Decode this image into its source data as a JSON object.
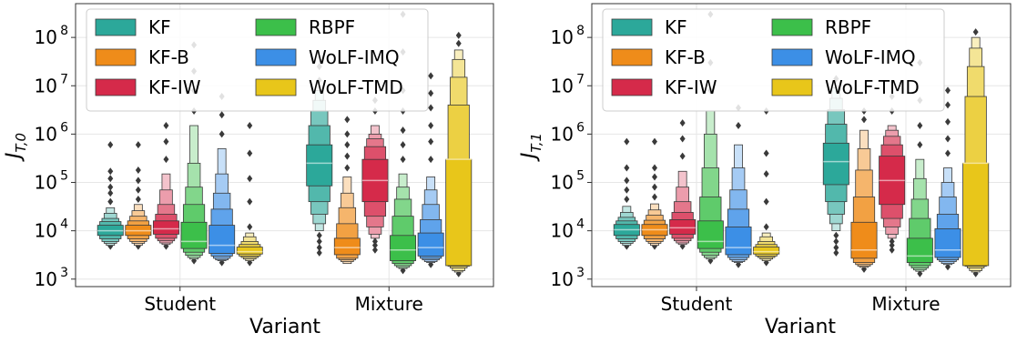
{
  "chart_data": [
    {
      "type": "boxen",
      "panel": "left",
      "xlabel": "Variant",
      "ylabel": "J_{T,0}",
      "ylabel_main": "J",
      "ylabel_sub": "T,0",
      "yscale": "log",
      "ylim": [
        700,
        500000000
      ],
      "grid": true,
      "legend": "top-left",
      "categories": [
        "Student",
        "Mixture"
      ],
      "yticks": [
        {
          "value": 1000,
          "base": "10",
          "exp": "3"
        },
        {
          "value": 10000,
          "base": "10",
          "exp": "4"
        },
        {
          "value": 100000,
          "base": "10",
          "exp": "5"
        },
        {
          "value": 1000000,
          "base": "10",
          "exp": "6"
        },
        {
          "value": 10000000,
          "base": "10",
          "exp": "7"
        },
        {
          "value": 100000000,
          "base": "10",
          "exp": "8"
        }
      ],
      "series": [
        {
          "name": "KF",
          "color": "#2ca89a",
          "values": [
            {
              "median": 10000,
              "levels": [
                [
                  8000,
                  13000
                ],
                [
                  6800,
                  15500
                ],
                [
                  6000,
                  18000
                ],
                [
                  5500,
                  23000
                ],
                [
                  5000,
                  30000
                ]
              ],
              "outliers": [
                4800,
                40000,
                60000,
                80000,
                120000,
                170000,
                600000
              ]
            },
            {
              "median": 250000,
              "levels": [
                [
                  85000,
                  600000
                ],
                [
                  40000,
                  1500000
                ],
                [
                  22000,
                  3000000
                ],
                [
                  14000,
                  5000000
                ],
                [
                  10000,
                  8000000
                ]
              ],
              "outliers": [
                3500,
                4500,
                6000,
                8000,
                13000000,
                25000000
              ]
            }
          ]
        },
        {
          "name": "KF-B",
          "color": "#ef8c1a",
          "values": [
            {
              "median": 10000,
              "levels": [
                [
                  8000,
                  13000
                ],
                [
                  6800,
                  16000
                ],
                [
                  6000,
                  20000
                ],
                [
                  5500,
                  26000
                ],
                [
                  5000,
                  35000
                ]
              ],
              "outliers": [
                4800,
                45000,
                70000,
                110000,
                180000,
                600000
              ]
            },
            {
              "median": 4500,
              "levels": [
                [
                  3200,
                  7000
                ],
                [
                  2700,
                  14000
                ],
                [
                  2500,
                  30000
                ],
                [
                  2300,
                  60000
                ],
                [
                  2100,
                  130000
                ]
              ],
              "outliers": [
                200000,
                350000,
                600000,
                1000000,
                2000000
              ]
            }
          ]
        },
        {
          "name": "KF-IW",
          "color": "#d52a4a",
          "values": [
            {
              "median": 11000,
              "levels": [
                [
                  8500,
                  16000
                ],
                [
                  7000,
                  22000
                ],
                [
                  6200,
                  35000
                ],
                [
                  5600,
                  70000
                ],
                [
                  5200,
                  150000
                ]
              ],
              "outliers": [
                4800,
                300000,
                700000,
                1500000
              ]
            },
            {
              "median": 110000,
              "levels": [
                [
                  40000,
                  300000
                ],
                [
                  20000,
                  550000
                ],
                [
                  12000,
                  800000
                ],
                [
                  8500,
                  1000000
                ],
                [
                  7000,
                  1500000
                ]
              ],
              "outliers": [
                4000,
                5000,
                6000,
                7500,
                3000000,
                5000000
              ]
            }
          ]
        },
        {
          "name": "RBPF",
          "color": "#3cbf4a",
          "values": [
            {
              "median": 6000,
              "levels": [
                [
                  4300,
                  15000
                ],
                [
                  3600,
                  35000
                ],
                [
                  3100,
                  80000
                ],
                [
                  2800,
                  250000
                ],
                [
                  2600,
                  1500000
                ]
              ],
              "outliers": [
                2400,
                3000000,
                8000000,
                20000000,
                70000000
              ]
            },
            {
              "median": 4000,
              "levels": [
                [
                  2400,
                  8000
                ],
                [
                  2100,
                  20000
                ],
                [
                  1900,
                  45000
                ],
                [
                  1750,
                  80000
                ],
                [
                  1650,
                  150000
                ]
              ],
              "outliers": [
                1500,
                300000,
                600000,
                1200000,
                3000000,
                8000000,
                50000000,
                300000000
              ]
            }
          ]
        },
        {
          "name": "WoLF-IMQ",
          "color": "#3c8fe6",
          "values": [
            {
              "median": 5000,
              "levels": [
                [
                  3400,
                  13000
                ],
                [
                  3000,
                  28000
                ],
                [
                  2700,
                  60000
                ],
                [
                  2500,
                  150000
                ],
                [
                  2400,
                  500000
                ]
              ],
              "outliers": [
                2200,
                1000000,
                2500000,
                6000000
              ]
            },
            {
              "median": 4500,
              "levels": [
                [
                  3000,
                  9000
                ],
                [
                  2700,
                  17000
                ],
                [
                  2500,
                  35000
                ],
                [
                  2300,
                  70000
                ],
                [
                  2200,
                  130000
                ]
              ],
              "outliers": [
                2000,
                300000,
                700000,
                1500000,
                3500000,
                7000000,
                16000000
              ]
            }
          ]
        },
        {
          "name": "WoLF-TMD",
          "color": "#e8c61a",
          "values": [
            {
              "median": 3700,
              "levels": [
                [
                  3300,
                  4600
                ],
                [
                  3000,
                  5200
                ],
                [
                  2800,
                  6000
                ],
                [
                  2600,
                  7500
                ],
                [
                  2400,
                  9000
                ]
              ],
              "outliers": [
                2200,
                12000,
                40000,
                120000,
                400000,
                1500000
              ]
            },
            {
              "median": 300000,
              "levels": [
                [
                  1900,
                  300000
                ],
                [
                  1850,
                  4000000
                ],
                [
                  1700,
                  15000000
                ],
                [
                  1500,
                  35000000
                ],
                [
                  1400,
                  55000000
                ]
              ],
              "outliers": [
                1300,
                75000000,
                110000000
              ]
            }
          ]
        }
      ]
    },
    {
      "type": "boxen",
      "panel": "right",
      "xlabel": "Variant",
      "ylabel": "J_{T,1}",
      "ylabel_main": "J",
      "ylabel_sub": "T,1",
      "yscale": "log",
      "ylim": [
        700,
        500000000
      ],
      "grid": true,
      "legend": "top-left",
      "categories": [
        "Student",
        "Mixture"
      ],
      "yticks": [
        {
          "value": 1000,
          "base": "10",
          "exp": "3"
        },
        {
          "value": 10000,
          "base": "10",
          "exp": "4"
        },
        {
          "value": 100000,
          "base": "10",
          "exp": "5"
        },
        {
          "value": 1000000,
          "base": "10",
          "exp": "6"
        },
        {
          "value": 10000000,
          "base": "10",
          "exp": "7"
        },
        {
          "value": 100000000,
          "base": "10",
          "exp": "8"
        }
      ],
      "series": [
        {
          "name": "KF",
          "color": "#2ca89a",
          "values": [
            {
              "median": 10500,
              "levels": [
                [
                  8000,
                  13500
                ],
                [
                  6800,
                  16000
                ],
                [
                  6000,
                  19000
                ],
                [
                  5500,
                  24000
                ],
                [
                  5000,
                  32000
                ]
              ],
              "outliers": [
                4800,
                45000,
                70000,
                110000,
                200000,
                700000
              ]
            },
            {
              "median": 270000,
              "levels": [
                [
                  90000,
                  650000
                ],
                [
                  40000,
                  1600000
                ],
                [
                  22000,
                  3200000
                ],
                [
                  14000,
                  5500000
                ],
                [
                  10000,
                  9000000
                ]
              ],
              "outliers": [
                3500,
                4500,
                6000,
                8000,
                14000000
              ]
            }
          ]
        },
        {
          "name": "KF-B",
          "color": "#ef8c1a",
          "values": [
            {
              "median": 10500,
              "levels": [
                [
                  8000,
                  13500
                ],
                [
                  6800,
                  16500
                ],
                [
                  6000,
                  21000
                ],
                [
                  5500,
                  27000
                ],
                [
                  5000,
                  36000
                ]
              ],
              "outliers": [
                4800,
                50000,
                80000,
                130000,
                200000,
                700000
              ]
            },
            {
              "median": 4000,
              "levels": [
                [
                  2700,
                  15000
                ],
                [
                  2200,
                  50000
                ],
                [
                  2000,
                  180000
                ],
                [
                  1850,
                  500000
                ],
                [
                  1750,
                  1200000
                ]
              ],
              "outliers": [
                1600,
                2000000,
                3000000
              ]
            }
          ]
        },
        {
          "name": "KF-IW",
          "color": "#d52a4a",
          "values": [
            {
              "median": 11500,
              "levels": [
                [
                  8500,
                  17000
                ],
                [
                  7000,
                  24000
                ],
                [
                  6200,
                  40000
                ],
                [
                  5600,
                  80000
                ],
                [
                  5200,
                  170000
                ]
              ],
              "outliers": [
                4800,
                350000,
                800000,
                1700000
              ]
            },
            {
              "median": 110000,
              "levels": [
                [
                  35000,
                  350000
                ],
                [
                  18000,
                  600000
                ],
                [
                  12000,
                  900000
                ],
                [
                  8500,
                  1200000
                ],
                [
                  7000,
                  1500000
                ]
              ],
              "outliers": [
                4000,
                5000,
                6000,
                7500,
                3000000,
                6000000
              ]
            }
          ]
        },
        {
          "name": "RBPF",
          "color": "#3cbf4a",
          "values": [
            {
              "median": 6000,
              "levels": [
                [
                  4300,
                  16000
                ],
                [
                  3600,
                  50000
                ],
                [
                  3100,
                  200000
                ],
                [
                  2800,
                  1000000
                ],
                [
                  2600,
                  3000000
                ]
              ],
              "outliers": [
                2400,
                8000000,
                30000000,
                300000000
              ]
            },
            {
              "median": 3000,
              "levels": [
                [
                  2200,
                  7000
                ],
                [
                  1900,
                  18000
                ],
                [
                  1700,
                  45000
                ],
                [
                  1550,
                  120000
                ],
                [
                  1450,
                  300000
                ]
              ],
              "outliers": [
                1300,
                600000,
                1500000,
                5000000,
                30000000
              ]
            }
          ]
        },
        {
          "name": "WoLF-IMQ",
          "color": "#3c8fe6",
          "values": [
            {
              "median": 4500,
              "levels": [
                [
                  3200,
                  12000
                ],
                [
                  2800,
                  28000
                ],
                [
                  2500,
                  70000
                ],
                [
                  2300,
                  200000
                ],
                [
                  2200,
                  600000
                ]
              ],
              "outliers": [
                2000,
                1500000,
                3500000
              ]
            },
            {
              "median": 4000,
              "levels": [
                [
                  2800,
                  11000
                ],
                [
                  2500,
                  22000
                ],
                [
                  2300,
                  50000
                ],
                [
                  2100,
                  100000
                ],
                [
                  2000,
                  200000
                ]
              ],
              "outliers": [
                1800,
                400000,
                800000,
                1800000,
                4000000,
                8000000
              ]
            }
          ]
        },
        {
          "name": "WoLF-TMD",
          "color": "#e8c61a",
          "values": [
            {
              "median": 3700,
              "levels": [
                [
                  3300,
                  4600
                ],
                [
                  3000,
                  5200
                ],
                [
                  2800,
                  6000
                ],
                [
                  2600,
                  7500
                ],
                [
                  2400,
                  9000
                ]
              ],
              "outliers": [
                2200,
                12000,
                40000,
                150000,
                400000,
                3000000
              ]
            },
            {
              "median": 250000,
              "levels": [
                [
                  1900,
                  250000
                ],
                [
                  1850,
                  6000000
                ],
                [
                  1700,
                  25000000
                ],
                [
                  1500,
                  60000000
                ],
                [
                  1400,
                  100000000
                ]
              ],
              "outliers": [
                1300,
                130000000
              ]
            }
          ]
        }
      ]
    }
  ]
}
